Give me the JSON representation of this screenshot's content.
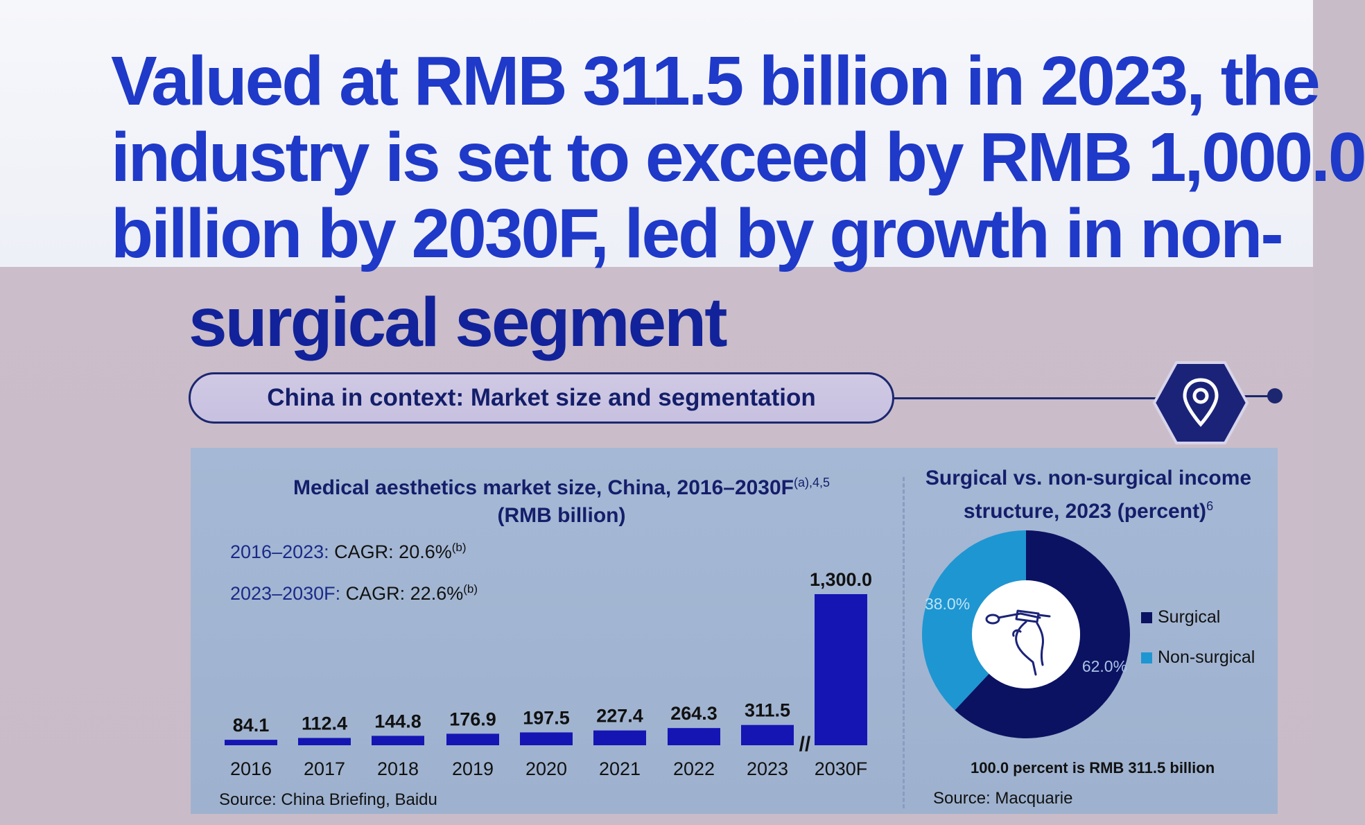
{
  "headline": {
    "line1": "Valued at RMB 311.5 billion in 2023, the",
    "line2": "industry is set to exceed by RMB 1,000.0",
    "line3": "billion by 2030F, led by growth in non-",
    "line4": "surgical segment"
  },
  "banner": {
    "title": "China in context: Market size and segmentation",
    "icon": "location-pin-icon"
  },
  "colors": {
    "headline": "#1f39c8",
    "bar": "#1515b4",
    "surgical": "#0c1262",
    "non_surgical": "#1e96d2"
  },
  "bar_chart_text": {
    "title_line1": "Medical aesthetics market size, China, 2016–2030F",
    "title_sup": "(a),4,5",
    "title_line2": "(RMB billion)",
    "cagr1_years": "2016–2023:",
    "cagr1_text": "CAGR: 20.6%",
    "cagr1_sup": "(b)",
    "cagr2_years": "2023–2030F:",
    "cagr2_text": "CAGR: 22.6%",
    "cagr2_sup": "(b)",
    "axis_break": "//",
    "source": "Source: China Briefing, Baidu"
  },
  "donut_text": {
    "title_line1": "Surgical vs. non-surgical income",
    "title_line2": "structure, 2023 (percent)",
    "title_sup": "6",
    "note": "100.0 percent is RMB 311.5 billion",
    "source": "Source: Macquarie",
    "center_icon": "injection-hand-icon"
  },
  "chart_data": [
    {
      "type": "bar",
      "title": "Medical aesthetics market size, China, 2016–2030F(a),4,5 (RMB billion)",
      "categories": [
        "2016",
        "2017",
        "2018",
        "2019",
        "2020",
        "2021",
        "2022",
        "2023",
        "2030F"
      ],
      "values": [
        84.1,
        112.4,
        144.8,
        176.9,
        197.5,
        227.4,
        264.3,
        311.5,
        1300.0
      ],
      "value_labels": [
        "84.1",
        "112.4",
        "144.8",
        "176.9",
        "197.5",
        "227.4",
        "264.3",
        "311.5",
        "1,300.0"
      ],
      "axis_break_between": [
        "2023",
        "2030F"
      ],
      "grid": false,
      "xlabel": "",
      "ylabel": ""
    },
    {
      "type": "pie",
      "title": "Surgical vs. non-surgical income structure, 2023 (percent)6",
      "series": [
        {
          "name": "Surgical",
          "value": 62.0,
          "label": "62.0%"
        },
        {
          "name": "Non-surgical",
          "value": 38.0,
          "label": "38.0%"
        }
      ],
      "legend_position": "right"
    }
  ]
}
